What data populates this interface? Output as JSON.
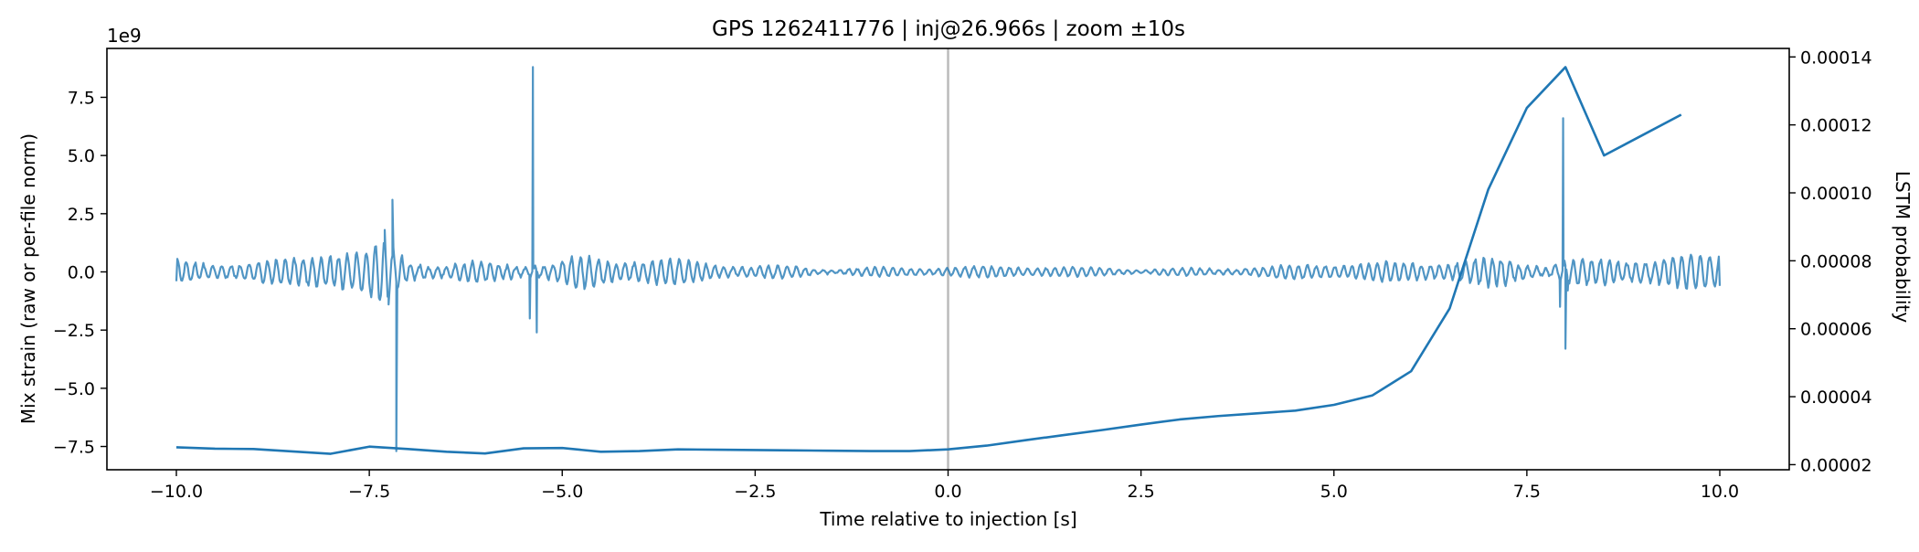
{
  "chart_data": {
    "type": "line",
    "title": "GPS 1262411776 | inj@26.966s | zoom ±10s",
    "xlabel": "Time relative to injection [s]",
    "ylabel_left": "Mix strain (raw or per-file norm)",
    "ylabel_right": "LSTM probability",
    "left_offset_label": "1e9",
    "xlim": [
      -10.9,
      10.9
    ],
    "ylim_left": [
      -8.5,
      9.6
    ],
    "ylim_right": [
      1.85e-05,
      0.0001425
    ],
    "x_ticks": [
      -10.0,
      -7.5,
      -5.0,
      -2.5,
      0.0,
      2.5,
      5.0,
      7.5,
      10.0
    ],
    "x_tick_labels": [
      "−10.0",
      "−7.5",
      "−5.0",
      "−2.5",
      "0.0",
      "2.5",
      "5.0",
      "7.5",
      "10.0"
    ],
    "y_left_ticks": [
      -7.5,
      -5.0,
      -2.5,
      0.0,
      2.5,
      5.0,
      7.5
    ],
    "y_left_tick_labels": [
      "−7.5",
      "−5.0",
      "−2.5",
      "0.0",
      "2.5",
      "5.0",
      "7.5"
    ],
    "y_right_ticks": [
      2e-05,
      4e-05,
      6e-05,
      8e-05,
      0.0001,
      0.00012,
      0.00014
    ],
    "y_right_tick_labels": [
      "0.00002",
      "0.00004",
      "0.00006",
      "0.00008",
      "0.00010",
      "0.00012",
      "0.00014"
    ],
    "grid": false,
    "injection_marker_x": 0.0,
    "colors": {
      "series": "#1f77b4",
      "marker_line": "#bbbbbb",
      "axes": "#000000"
    },
    "strain_series": {
      "axis": "left",
      "units_scale": 1000000000.0,
      "x_range": [
        -10.0,
        10.0
      ],
      "envelope": [
        [
          -10.0,
          0.6
        ],
        [
          -9.5,
          0.5
        ],
        [
          -9.0,
          0.4
        ],
        [
          -8.5,
          0.5
        ],
        [
          -8.0,
          0.9
        ],
        [
          -7.6,
          0.8
        ],
        [
          -7.3,
          1.3
        ],
        [
          -7.0,
          0.7
        ],
        [
          -6.5,
          0.5
        ],
        [
          -6.0,
          0.6
        ],
        [
          -5.6,
          0.6
        ],
        [
          -5.2,
          0.5
        ],
        [
          -4.8,
          0.7
        ],
        [
          -4.3,
          0.5
        ],
        [
          -3.8,
          0.5
        ],
        [
          -3.0,
          0.35
        ],
        [
          -2.0,
          0.3
        ],
        [
          -1.0,
          0.25
        ],
        [
          0.0,
          0.2
        ],
        [
          1.0,
          0.2
        ],
        [
          2.0,
          0.2
        ],
        [
          3.0,
          0.2
        ],
        [
          4.0,
          0.25
        ],
        [
          5.0,
          0.3
        ],
        [
          6.0,
          0.4
        ],
        [
          6.6,
          0.6
        ],
        [
          7.2,
          0.8
        ],
        [
          7.6,
          0.7
        ],
        [
          8.5,
          0.6
        ],
        [
          9.0,
          0.6
        ],
        [
          9.5,
          0.6
        ],
        [
          10.0,
          0.7
        ]
      ],
      "spikes": [
        {
          "x": -7.3,
          "y": 1.8
        },
        {
          "x": -7.25,
          "y": -1.4
        },
        {
          "x": -7.2,
          "y": 3.1
        },
        {
          "x": -7.15,
          "y": -7.7
        },
        {
          "x": -5.42,
          "y": -2.0
        },
        {
          "x": -5.38,
          "y": 8.8
        },
        {
          "x": -5.33,
          "y": -2.6
        },
        {
          "x": 7.93,
          "y": -1.5
        },
        {
          "x": 7.97,
          "y": 6.6
        },
        {
          "x": 8.0,
          "y": -3.3
        },
        {
          "x": 8.03,
          "y": -0.8
        }
      ]
    },
    "probability_series": {
      "axis": "right",
      "points": [
        [
          -10.0,
          2.51e-05
        ],
        [
          -9.5,
          2.47e-05
        ],
        [
          -9.0,
          2.46e-05
        ],
        [
          -8.5,
          2.39e-05
        ],
        [
          -8.0,
          2.32e-05
        ],
        [
          -7.5,
          2.53e-05
        ],
        [
          -7.0,
          2.46e-05
        ],
        [
          -6.5,
          2.38e-05
        ],
        [
          -6.0,
          2.33e-05
        ],
        [
          -5.5,
          2.48e-05
        ],
        [
          -5.0,
          2.49e-05
        ],
        [
          -4.5,
          2.38e-05
        ],
        [
          -4.0,
          2.4e-05
        ],
        [
          -3.5,
          2.45e-05
        ],
        [
          -3.0,
          2.44e-05
        ],
        [
          -2.5,
          2.43e-05
        ],
        [
          -2.0,
          2.42e-05
        ],
        [
          -1.5,
          2.41e-05
        ],
        [
          -1.0,
          2.4e-05
        ],
        [
          -0.5,
          2.4e-05
        ],
        [
          0.0,
          2.45e-05
        ],
        [
          0.5,
          2.56e-05
        ],
        [
          1.0,
          2.72e-05
        ],
        [
          1.5,
          2.87e-05
        ],
        [
          2.0,
          3.02e-05
        ],
        [
          2.5,
          3.18e-05
        ],
        [
          3.0,
          3.33e-05
        ],
        [
          3.5,
          3.43e-05
        ],
        [
          4.0,
          3.51e-05
        ],
        [
          4.5,
          3.59e-05
        ],
        [
          5.0,
          3.76e-05
        ],
        [
          5.5,
          4.04e-05
        ],
        [
          6.0,
          4.75e-05
        ],
        [
          6.5,
          6.6e-05
        ],
        [
          7.0,
          0.000101
        ],
        [
          7.5,
          0.000125
        ],
        [
          8.0,
          0.000137
        ],
        [
          8.5,
          0.000111
        ],
        [
          9.0,
          0.000117
        ],
        [
          9.5,
          0.000123
        ]
      ]
    }
  }
}
